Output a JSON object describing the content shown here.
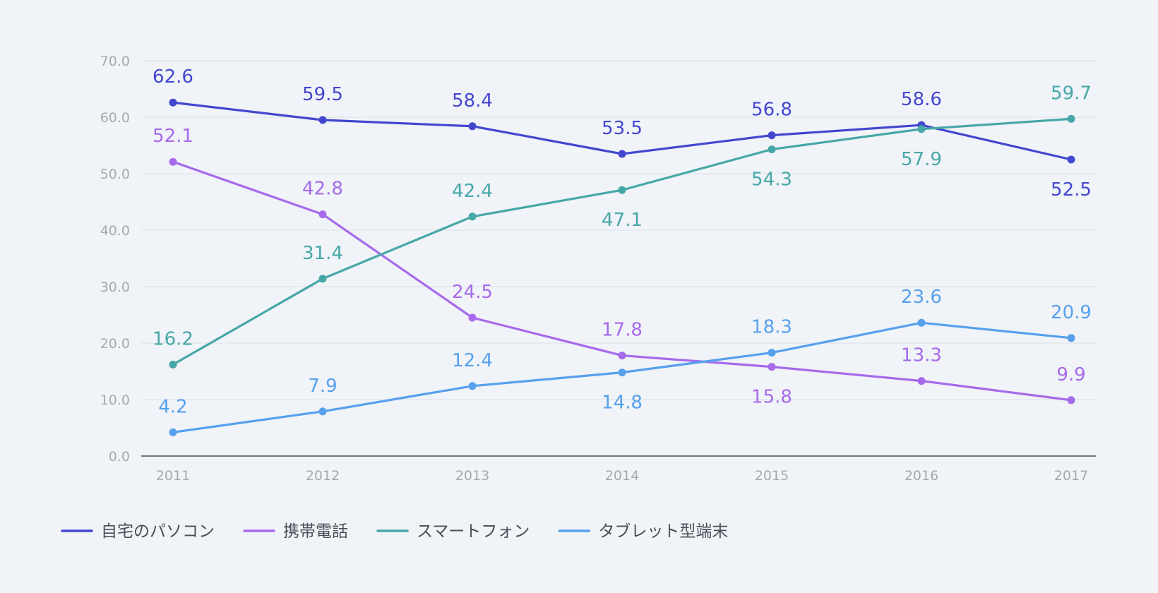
{
  "chart_data": {
    "type": "line",
    "categories": [
      "2011",
      "2012",
      "2013",
      "2014",
      "2015",
      "2016",
      "2017"
    ],
    "series": [
      {
        "name": "自宅のパソコン",
        "color": "#4347cf",
        "values": [
          62.6,
          59.5,
          58.4,
          53.5,
          56.8,
          58.6,
          52.5
        ],
        "label_positions": [
          "above",
          "above",
          "above",
          "above",
          "above",
          "above",
          "below"
        ]
      },
      {
        "name": "携帯電話",
        "color": "#a66aea",
        "values": [
          52.1,
          42.8,
          24.5,
          17.8,
          15.8,
          13.3,
          9.9
        ],
        "label_positions": [
          "above",
          "above",
          "above",
          "above",
          "below",
          "above",
          "above"
        ]
      },
      {
        "name": "スマートフォン",
        "color": "#46a8a6",
        "values": [
          16.2,
          31.4,
          42.4,
          47.1,
          54.3,
          57.9,
          59.7
        ],
        "label_positions": [
          "above",
          "above",
          "above",
          "below",
          "below",
          "below",
          "above"
        ]
      },
      {
        "name": "タブレット型端末",
        "color": "#57a0ec",
        "values": [
          4.2,
          7.9,
          12.4,
          14.8,
          18.3,
          23.6,
          20.9
        ],
        "label_positions": [
          "above",
          "above",
          "above",
          "below",
          "above",
          "above",
          "above"
        ]
      }
    ],
    "y_ticks": [
      "0.0",
      "10.0",
      "20.0",
      "30.0",
      "40.0",
      "50.0",
      "60.0",
      "70.0"
    ],
    "ylim": [
      0,
      70
    ],
    "grid": true,
    "legend_position": "bottom-left"
  }
}
